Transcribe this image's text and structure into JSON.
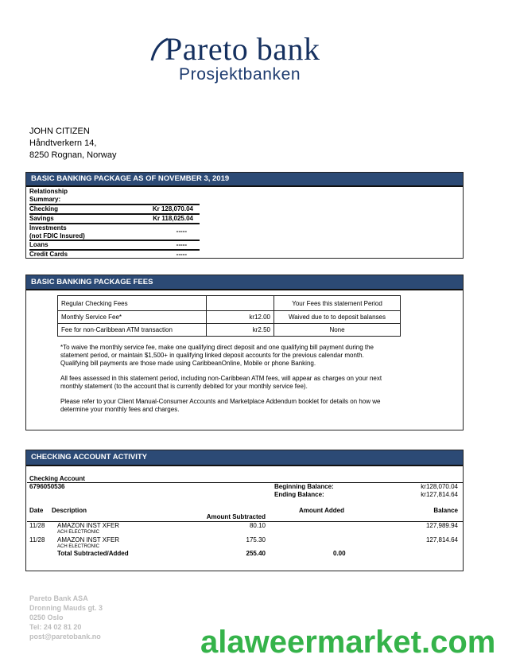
{
  "logo": {
    "name": "Pareto bank",
    "tagline": "Prosjektbanken"
  },
  "customer": {
    "name": "JOHN CITIZEN",
    "street": "Håndtverkern 14,",
    "city": "8250 Rognan, Norway"
  },
  "summary": {
    "header": "BASIC BANKING PACKAGE AS OF NOVEMBER 3, 2019",
    "title_line1": "Relationship",
    "title_line2": "Summary:",
    "rows": [
      {
        "label": "Checking",
        "value": "Kr 128,070.04"
      },
      {
        "label": "Savings",
        "value": "Kr 118,025.04"
      },
      {
        "label": "Investments",
        "label2": "(not FDIC Insured)",
        "value": "-----"
      },
      {
        "label": "Loans",
        "value": "-----"
      },
      {
        "label": "Credit Cards",
        "value": "-----"
      }
    ]
  },
  "fees": {
    "header": "BASIC BANKING PACKAGE FEES",
    "col1": "Regular Checking Fees",
    "col3": "Your Fees this statement Period",
    "rows": [
      {
        "name": "Monthly Service Fee*",
        "amount": "kr12.00",
        "yours": "Waived due to to deposit balanses"
      },
      {
        "name": "Fee for non-Caribbean ATM transaction",
        "amount": "kr2.50",
        "yours": "None"
      }
    ],
    "notes": [
      "*To waive the monthly service fee, make one qualifying direct deposit and one qualifying bill payment during the statement period, or maintain $1,500+ in qualifying linked deposit accounts for the previous calendar month. Qualifying bill payments are those made using CaribbeanOnline, Mobile or phone Banking.",
      "All fees assessed in this statement period, including non-Caribbean ATM fees, will appear as charges on your next monthly statement (to the account that is currently debited for your monthly service fee).",
      "Please refer to your Client Manual-Consumer Accounts and Marketplace Addendum booklet for details on how we determine your monthly fees and charges."
    ]
  },
  "activity": {
    "header": "CHECKING ACCOUNT ACTIVITY",
    "account_label": "Checking Account",
    "account_number": "6796050536",
    "beginning_label": "Beginning Balance:",
    "beginning_value": "kr128,070.04",
    "ending_label": "Ending Balance:",
    "ending_value": "kr127,814.64",
    "columns": {
      "date": "Date",
      "description": "Description",
      "subtracted": "Amount Subtracted",
      "added": "Amount Added",
      "balance": "Balance"
    },
    "rows": [
      {
        "date": "11/28",
        "desc": "AMAZON INST XFER",
        "sub": "ACH ELECTRONIC",
        "subtracted": "80.10",
        "balance": "127,989.94"
      },
      {
        "date": "11/28",
        "desc": "AMAZON INST XFER",
        "sub": "ACH ELECTRONIC",
        "subtracted": "175.30",
        "balance": "127,814.64"
      }
    ],
    "total_label": "Total Subtracted/Added",
    "total_subtracted": "255.40",
    "total_added": "0.00"
  },
  "footer": {
    "lines": [
      "Pareto Bank ASA",
      "Dronning Mauds gt. 3",
      "0250 Oslo",
      "Tel: 24 02 81 20",
      "post@paretobank.no"
    ]
  },
  "watermark": "alaweermarket.com",
  "colors": {
    "header_bg": "#2c4a75",
    "logo": "#15305f",
    "watermark": "#35b34a"
  }
}
